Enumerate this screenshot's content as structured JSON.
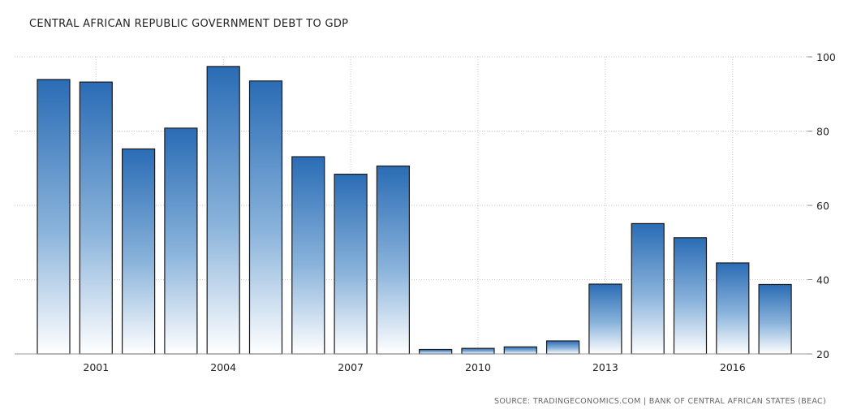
{
  "chart_data": {
    "type": "bar",
    "title": "CENTRAL AFRICAN REPUBLIC GOVERNMENT DEBT TO GDP",
    "source": "SOURCE: TRADINGECONOMICS.COM | BANK OF CENTRAL AFRICAN STATES (BEAC)",
    "xlabel": "",
    "ylabel": "",
    "categories": [
      2000,
      2001,
      2002,
      2003,
      2004,
      2005,
      2006,
      2007,
      2008,
      2009,
      2010,
      2011,
      2012,
      2013,
      2014,
      2015,
      2016,
      2017
    ],
    "x_tick_labels": [
      "2001",
      "2004",
      "2007",
      "2010",
      "2013",
      "2016"
    ],
    "values": [
      93.9,
      93.2,
      75.2,
      80.8,
      97.4,
      93.5,
      73.1,
      68.4,
      70.6,
      21.2,
      21.5,
      21.9,
      23.5,
      38.8,
      55.1,
      51.3,
      44.5,
      38.7
    ],
    "ylim": [
      20,
      100
    ],
    "y_ticks": [
      20,
      40,
      60,
      80,
      100
    ],
    "grid": true,
    "colors": {
      "bar_top": "#2a6cb5",
      "bar_mid": "#8ab3db",
      "bar_bottom": "#ffffff",
      "bar_stroke": "#1a1a1a",
      "grid": "#c8c8c8"
    }
  }
}
